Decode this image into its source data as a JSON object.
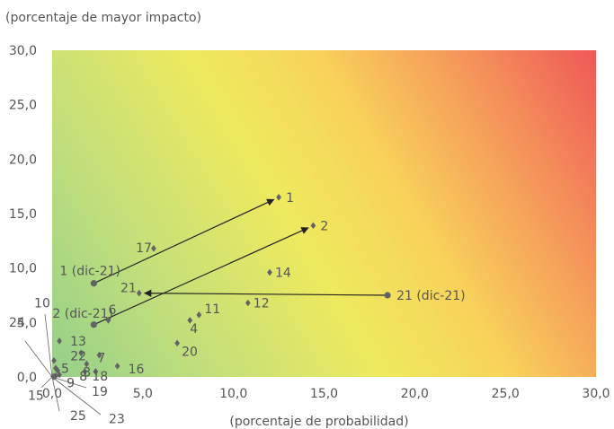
{
  "chart_data": {
    "type": "scatter",
    "ylabel": "(porcentaje de mayor impacto)",
    "xlabel": "(porcentaje de probabilidad)",
    "xlim": [
      0,
      30
    ],
    "ylim": [
      0,
      30
    ],
    "x_ticks": [
      "0,0",
      "5,0",
      "10,0",
      "15,0",
      "20,0",
      "25,0",
      "30,0"
    ],
    "y_ticks": [
      "0,0",
      "5,0",
      "10,0",
      "15,0",
      "20,0",
      "25,0",
      "30,0"
    ],
    "grid": false,
    "background": "heatmap gradient from green (low probability/impact) through yellow and orange to red (high probability/impact)",
    "colors": {
      "low": "#9fd38a",
      "mid": "#eaea60",
      "high_mid": "#f5a259",
      "high": "#ef5a5a",
      "point": "#636363",
      "text": "#555555"
    },
    "points": [
      {
        "label": "1",
        "x": 12.5,
        "y": 16.5
      },
      {
        "label": "2",
        "x": 14.4,
        "y": 13.9
      },
      {
        "label": "17",
        "x": 5.6,
        "y": 11.8
      },
      {
        "label": "14",
        "x": 12.0,
        "y": 9.6
      },
      {
        "label": "21",
        "x": 4.8,
        "y": 7.7
      },
      {
        "label": "12",
        "x": 10.8,
        "y": 6.8
      },
      {
        "label": "11",
        "x": 8.1,
        "y": 5.7
      },
      {
        "label": "6",
        "x": 3.1,
        "y": 5.2
      },
      {
        "label": "4",
        "x": 7.6,
        "y": 5.2
      },
      {
        "label": "20",
        "x": 6.9,
        "y": 3.1
      },
      {
        "label": "13",
        "x": 0.4,
        "y": 3.3
      },
      {
        "label": "22",
        "x": 1.6,
        "y": 2.2
      },
      {
        "label": "7",
        "x": 2.6,
        "y": 2.0
      },
      {
        "label": "3",
        "x": 1.9,
        "y": 1.2
      },
      {
        "label": "16",
        "x": 3.6,
        "y": 1.0
      },
      {
        "label": "8",
        "x": 1.8,
        "y": 0.5
      },
      {
        "label": "18",
        "x": 2.4,
        "y": 0.5
      },
      {
        "label": "5",
        "x": 0.3,
        "y": 0.6
      },
      {
        "label": "9",
        "x": 0.4,
        "y": 0.2
      },
      {
        "label": "10",
        "x": 0.2,
        "y": 0.8
      },
      {
        "label": "24",
        "x": 0.1,
        "y": 1.5
      },
      {
        "label": "15",
        "x": 0.05,
        "y": 0.05
      },
      {
        "label": "19",
        "x": 0.2,
        "y": 0.1
      },
      {
        "label": "25",
        "x": 0.1,
        "y": 0.0
      },
      {
        "label": "23",
        "x": 0.15,
        "y": 0.05
      }
    ],
    "reference_points": [
      {
        "label": "1 (dic-21)",
        "x": 2.3,
        "y": 8.6
      },
      {
        "label": "2 (dic-21)",
        "x": 2.3,
        "y": 4.8
      },
      {
        "label": "21 (dic-21)",
        "x": 18.5,
        "y": 7.5
      }
    ],
    "arrows": [
      {
        "from": "1 (dic-21)",
        "to": "1"
      },
      {
        "from": "2 (dic-21)",
        "to": "2"
      },
      {
        "from": "21 (dic-21)",
        "to": "21"
      }
    ]
  }
}
